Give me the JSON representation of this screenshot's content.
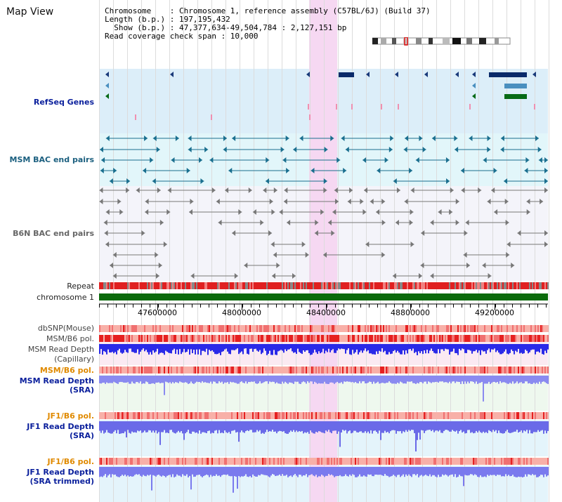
{
  "view_title": "Map View",
  "header": {
    "line1": "Chromosome    : Chromosome 1, reference assembly (C57BL/6J) (Build 37)",
    "line2": "Length (b.p.) : 197,195,432",
    "line3": "  Show (b.p.) : 47,377,634-49,504,784 : 2,127,151 bp",
    "line4": "Read coverage check span : 10,000"
  },
  "tracks": {
    "refseq": "RefSeq Genes",
    "msm_bac": "MSM BAC end pairs",
    "b6n_bac": "B6N BAC end pairs",
    "repeat": "Repeat",
    "chromosome": "chromosome 1",
    "dbsnp": "dbSNP(Mouse)",
    "msm_b6_pol_1": "MSM/B6 pol.",
    "msm_read_depth_cap_1": "MSM Read Depth",
    "msm_read_depth_cap_2": "(Capillary)",
    "msm_b6_pol_2": "MSM/B6 pol.",
    "msm_read_depth_sra_1": "MSM Read Depth",
    "msm_read_depth_sra_2": "(SRA)",
    "jf1_b6_pol_1": "JF1/B6 pol.",
    "jf1_read_depth_sra_1": "JF1 Read Depth",
    "jf1_read_depth_sra_2": "(SRA)",
    "jf1_b6_pol_2": "JF1/B6 pol.",
    "jf1_read_depth_trim_1": "JF1 Read Depth",
    "jf1_read_depth_trim_2": "(SRA trimmed)"
  },
  "axis_ticks": [
    "47600000",
    "48000000",
    "48400000",
    "48800000",
    "49200000"
  ],
  "colors": {
    "highlight": "#f6d8f2",
    "refseq_bg": "#dceef9",
    "msm_bac_bg": "#e2f6fa",
    "b6n_bac_bg": "#f4f4fa",
    "chromosome_bar": "#0b6a0b",
    "depth_blue": "#3a3ae8",
    "pol_red": "#e63030"
  }
}
